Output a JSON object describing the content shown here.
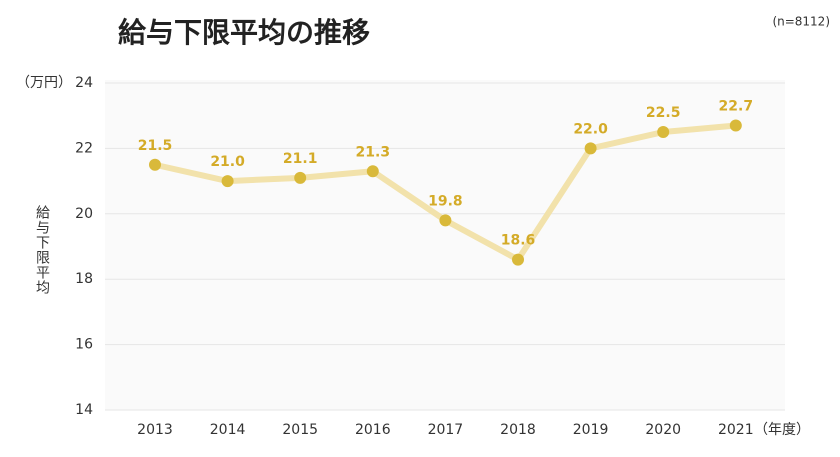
{
  "chart_data": {
    "type": "line",
    "title": "給与下限平均の推移",
    "subtitle": "(n=8112)",
    "y_unit": "（万円）",
    "x_unit": "（年度）",
    "y_label": "給与下限平均",
    "categories": [
      "2013",
      "2014",
      "2015",
      "2016",
      "2017",
      "2018",
      "2019",
      "2020",
      "2021"
    ],
    "values": [
      21.5,
      21.0,
      21.1,
      21.3,
      19.8,
      18.6,
      22.0,
      22.5,
      22.7
    ],
    "value_labels": [
      "21.5",
      "21.0",
      "21.1",
      "21.3",
      "19.8",
      "18.6",
      "22.0",
      "22.5",
      "22.7"
    ],
    "line_color": "#f2e2ab",
    "marker_color": "#d9b93a",
    "label_color": "#d4ab28",
    "ylim": [
      14,
      24
    ],
    "yticks": [
      14,
      16,
      18,
      20,
      22,
      24
    ],
    "grid": true
  }
}
